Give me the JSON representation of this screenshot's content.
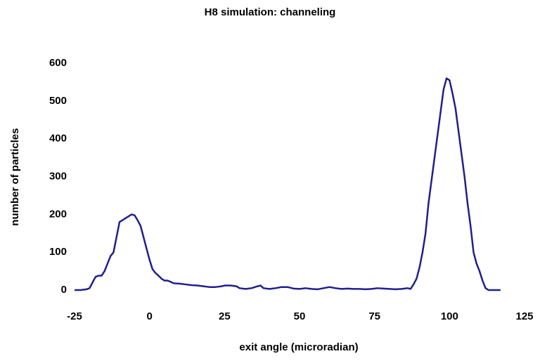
{
  "chart_data": {
    "type": "line",
    "title": "H8 simulation: channeling",
    "x_label": "exit angle (microradian)",
    "y_label": "number of particles",
    "x": [
      -25,
      -23,
      -21,
      -20,
      -19,
      -18,
      -17,
      -16,
      -15,
      -14,
      -13,
      -12,
      -11,
      -10,
      -9,
      -8,
      -7,
      -6,
      -5,
      -4,
      -3,
      -2,
      -1,
      0,
      1,
      2,
      3,
      4,
      5,
      6,
      7,
      8,
      10,
      12,
      14,
      16,
      18,
      20,
      22,
      24,
      25,
      27,
      29,
      30,
      32,
      34,
      36,
      37,
      38,
      40,
      42,
      44,
      46,
      48,
      50,
      52,
      54,
      56,
      58,
      60,
      62,
      64,
      66,
      68,
      70,
      72,
      74,
      76,
      78,
      80,
      82,
      84,
      86,
      87,
      88,
      89,
      90,
      91,
      92,
      93,
      94,
      95,
      96,
      97,
      98,
      99,
      100,
      101,
      102,
      103,
      104,
      105,
      106,
      107,
      108,
      109,
      110,
      111,
      112,
      113,
      114,
      116,
      117
    ],
    "series": [
      {
        "name": "channeling",
        "color": "#1f1f8f",
        "values": [
          0,
          0,
          2,
          5,
          20,
          35,
          38,
          38,
          50,
          70,
          90,
          100,
          140,
          180,
          185,
          190,
          195,
          200,
          198,
          185,
          170,
          140,
          110,
          80,
          55,
          45,
          38,
          30,
          25,
          25,
          22,
          18,
          17,
          15,
          13,
          12,
          10,
          8,
          8,
          10,
          12,
          12,
          10,
          5,
          3,
          5,
          10,
          12,
          5,
          3,
          5,
          8,
          8,
          4,
          3,
          5,
          3,
          2,
          5,
          8,
          5,
          3,
          4,
          3,
          3,
          2,
          3,
          5,
          4,
          3,
          2,
          3,
          5,
          3,
          15,
          30,
          60,
          100,
          150,
          230,
          290,
          350,
          410,
          470,
          530,
          560,
          555,
          520,
          480,
          420,
          360,
          300,
          230,
          170,
          100,
          70,
          50,
          25,
          5,
          0,
          0,
          0,
          0
        ]
      }
    ],
    "xlim": [
      -25,
      125
    ],
    "xticks": [
      -25,
      0,
      25,
      50,
      75,
      100,
      125
    ],
    "ylim": [
      0,
      600
    ],
    "yticks": [
      0,
      100,
      200,
      300,
      400,
      500,
      600
    ]
  }
}
